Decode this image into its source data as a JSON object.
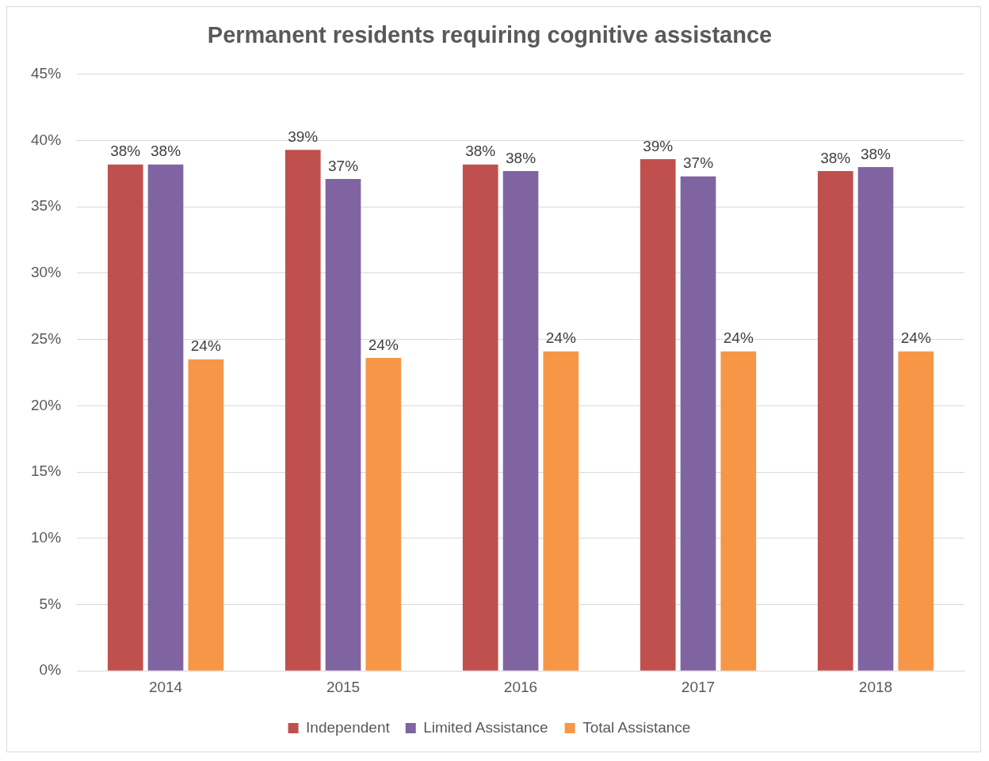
{
  "chart_data": {
    "type": "bar",
    "title": "Permanent residents requiring cognitive assistance",
    "categories": [
      "2014",
      "2015",
      "2016",
      "2017",
      "2018"
    ],
    "series": [
      {
        "name": "Independent",
        "color": "#c0504d",
        "values": [
          38.2,
          39.3,
          38.2,
          38.6,
          37.7
        ],
        "value_labels": [
          "38%",
          "39%",
          "38%",
          "39%",
          "38%"
        ]
      },
      {
        "name": "Limited Assistance",
        "color": "#8064a2",
        "values": [
          38.2,
          37.1,
          37.7,
          37.3,
          38.0
        ],
        "value_labels": [
          "38%",
          "37%",
          "38%",
          "37%",
          "38%"
        ]
      },
      {
        "name": "Total Assistance",
        "color": "#f79646",
        "values": [
          23.5,
          23.6,
          24.1,
          24.1,
          24.1
        ],
        "value_labels": [
          "24%",
          "24%",
          "24%",
          "24%",
          "24%"
        ]
      }
    ],
    "ylim": [
      0,
      45
    ],
    "yticks": [
      {
        "value": 0,
        "label": "0%"
      },
      {
        "value": 5,
        "label": "5%"
      },
      {
        "value": 10,
        "label": "10%"
      },
      {
        "value": 15,
        "label": "15%"
      },
      {
        "value": 20,
        "label": "20%"
      },
      {
        "value": 25,
        "label": "25%"
      },
      {
        "value": 30,
        "label": "30%"
      },
      {
        "value": 35,
        "label": "35%"
      },
      {
        "value": 40,
        "label": "40%"
      },
      {
        "value": 45,
        "label": "45%"
      }
    ],
    "grid": "y",
    "legend": "bottom"
  }
}
